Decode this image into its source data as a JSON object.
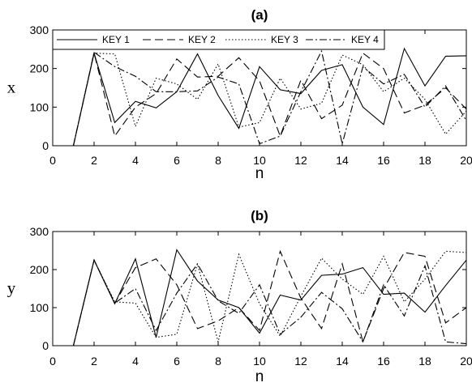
{
  "chart_data": [
    {
      "type": "line",
      "title": "(a)",
      "xlabel": "n",
      "ylabel": "x",
      "xlim": [
        0,
        20
      ],
      "ylim": [
        0,
        300
      ],
      "xticks": [
        0,
        2,
        4,
        6,
        8,
        10,
        12,
        14,
        16,
        18,
        20
      ],
      "yticks": [
        0,
        100,
        200,
        300
      ],
      "legend": "top",
      "x": [
        1,
        2,
        3,
        4,
        5,
        6,
        7,
        8,
        9,
        10,
        11,
        12,
        13,
        14,
        15,
        16,
        17,
        18,
        19,
        20
      ],
      "series": [
        {
          "name": "KEY 1",
          "style": "solid",
          "values": [
            0,
            240,
            60,
            115,
            98,
            140,
            238,
            130,
            45,
            205,
            145,
            135,
            195,
            210,
            100,
            55,
            252,
            155,
            232,
            233
          ]
        },
        {
          "name": "KEY 2",
          "style": "dashed",
          "values": [
            0,
            240,
            25,
            100,
            135,
            225,
            178,
            180,
            228,
            168,
            25,
            170,
            70,
            105,
            240,
            200,
            85,
            105,
            150,
            95
          ]
        },
        {
          "name": "KEY 3",
          "style": "dotted",
          "values": [
            0,
            240,
            238,
            50,
            175,
            160,
            120,
            212,
            48,
            60,
            175,
            95,
            110,
            235,
            210,
            140,
            175,
            120,
            30,
            90
          ]
        },
        {
          "name": "KEY 4",
          "style": "dashdot",
          "values": [
            0,
            242,
            205,
            180,
            140,
            140,
            142,
            178,
            160,
            5,
            25,
            140,
            245,
            5,
            205,
            160,
            185,
            100,
            155,
            65
          ]
        }
      ]
    },
    {
      "type": "line",
      "title": "(b)",
      "xlabel": "n",
      "ylabel": "y",
      "xlim": [
        0,
        20
      ],
      "ylim": [
        0,
        300
      ],
      "xticks": [
        0,
        2,
        4,
        6,
        8,
        10,
        12,
        14,
        16,
        18,
        20
      ],
      "yticks": [
        0,
        100,
        200,
        300
      ],
      "x": [
        1,
        2,
        3,
        4,
        5,
        6,
        7,
        8,
        9,
        10,
        11,
        12,
        13,
        14,
        15,
        16,
        17,
        18,
        19,
        20
      ],
      "series": [
        {
          "name": "KEY 1",
          "style": "solid",
          "values": [
            0,
            225,
            110,
            228,
            22,
            252,
            170,
            120,
            100,
            33,
            133,
            120,
            185,
            188,
            205,
            135,
            138,
            88,
            158,
            225
          ]
        },
        {
          "name": "KEY 2",
          "style": "dashed",
          "values": [
            0,
            225,
            112,
            205,
            228,
            160,
            45,
            65,
            100,
            40,
            248,
            125,
            45,
            215,
            10,
            150,
            245,
            235,
            60,
            100
          ]
        },
        {
          "name": "KEY 3",
          "style": "dotted",
          "values": [
            0,
            225,
            115,
            112,
            22,
            30,
            215,
            10,
            240,
            110,
            25,
            130,
            230,
            175,
            135,
            235,
            115,
            175,
            248,
            245
          ]
        },
        {
          "name": "KEY 4",
          "style": "dashdot",
          "values": [
            0,
            225,
            112,
            150,
            40,
            138,
            215,
            118,
            85,
            160,
            30,
            75,
            140,
            97,
            10,
            160,
            78,
            210,
            10,
            5
          ]
        }
      ]
    }
  ]
}
